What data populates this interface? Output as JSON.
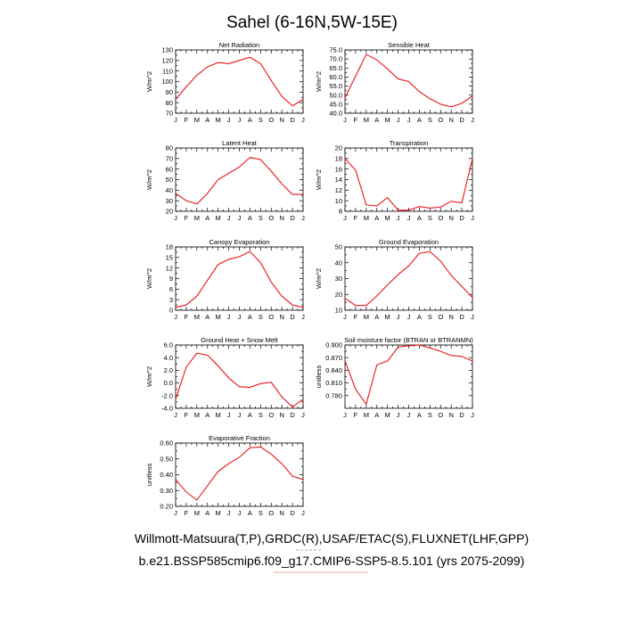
{
  "figure": {
    "title": "Sahel (6-16N,5W-15E)",
    "footer_line1": "Willmott-Matsuura(T,P),GRDC(R),USAF/ETAC(S),FLUXNET(LHF,GPP)",
    "footer_line2": "b.e21.BSSP585cmip6.f09_g17.CMIP6-SSP5-8.5.101 (yrs 2075-2099)",
    "line_color": "#e8141a"
  },
  "chart_data": [
    {
      "type": "line",
      "title": "Net Radiation",
      "ylabel": "W/m^2",
      "categories": [
        "J",
        "F",
        "M",
        "A",
        "M",
        "J",
        "J",
        "A",
        "S",
        "O",
        "N",
        "D",
        "J"
      ],
      "ylim": [
        70,
        130
      ],
      "yticks": [
        70,
        80,
        90,
        100,
        110,
        120,
        130
      ],
      "ytick_labels": [
        "70",
        "80",
        "90",
        "100",
        "110",
        "120",
        "130"
      ],
      "values": [
        83,
        95,
        106,
        114,
        118,
        117,
        120,
        123,
        117,
        101,
        86,
        77,
        83
      ]
    },
    {
      "type": "line",
      "title": "Sensible Heat",
      "ylabel": "W/m^2",
      "categories": [
        "J",
        "F",
        "M",
        "A",
        "M",
        "J",
        "J",
        "A",
        "S",
        "O",
        "N",
        "D",
        "J"
      ],
      "ylim": [
        40,
        75
      ],
      "yticks": [
        40,
        45,
        50,
        55,
        60,
        65,
        70,
        75
      ],
      "ytick_labels": [
        "40.0",
        "45.0",
        "50.0",
        "55.0",
        "60.0",
        "65.0",
        "70.0",
        "75.0"
      ],
      "values": [
        48.5,
        60.5,
        72.5,
        69.5,
        64.5,
        59,
        57.5,
        52,
        48,
        45,
        43.5,
        45.5,
        49.5
      ]
    },
    {
      "type": "line",
      "title": "Latent Heat",
      "ylabel": "W/m^2",
      "categories": [
        "J",
        "F",
        "M",
        "A",
        "M",
        "J",
        "J",
        "A",
        "S",
        "O",
        "N",
        "D",
        "J"
      ],
      "ylim": [
        20,
        80
      ],
      "yticks": [
        20,
        30,
        40,
        50,
        60,
        70,
        80
      ],
      "ytick_labels": [
        "20",
        "30",
        "40",
        "50",
        "60",
        "70",
        "80"
      ],
      "values": [
        37,
        30,
        27,
        37,
        50,
        56,
        62,
        71,
        69,
        58,
        46,
        36,
        36
      ]
    },
    {
      "type": "line",
      "title": "Transpiration",
      "ylabel": "W/m^2",
      "categories": [
        "J",
        "F",
        "M",
        "A",
        "M",
        "J",
        "J",
        "A",
        "S",
        "O",
        "N",
        "D",
        "J"
      ],
      "ylim": [
        8,
        20
      ],
      "yticks": [
        8,
        10,
        12,
        14,
        16,
        18,
        20
      ],
      "ytick_labels": [
        "8",
        "10",
        "12",
        "14",
        "16",
        "18",
        "20"
      ],
      "values": [
        18,
        15.8,
        9.2,
        9,
        10.6,
        8.2,
        8.2,
        8.9,
        8.6,
        8.8,
        9.9,
        9.6,
        18
      ]
    },
    {
      "type": "line",
      "title": "Canopy Evaporation",
      "ylabel": "W/m^2",
      "categories": [
        "J",
        "F",
        "M",
        "A",
        "M",
        "J",
        "J",
        "A",
        "S",
        "O",
        "N",
        "D",
        "J"
      ],
      "ylim": [
        0,
        18
      ],
      "yticks": [
        0,
        3,
        6,
        9,
        12,
        15,
        18
      ],
      "ytick_labels": [
        "0",
        "3",
        "6",
        "9",
        "12",
        "15",
        "18"
      ],
      "values": [
        0.8,
        1.5,
        4,
        8.5,
        13,
        14.5,
        15.2,
        16.7,
        13.5,
        8,
        4,
        1.5,
        0.8
      ]
    },
    {
      "type": "line",
      "title": "Ground Evaporation",
      "ylabel": "W/m^2",
      "categories": [
        "J",
        "F",
        "M",
        "A",
        "M",
        "J",
        "J",
        "A",
        "S",
        "O",
        "N",
        "D",
        "J"
      ],
      "ylim": [
        10,
        50
      ],
      "yticks": [
        10,
        20,
        30,
        40,
        50
      ],
      "ytick_labels": [
        "10",
        "20",
        "30",
        "40",
        "50"
      ],
      "values": [
        17.5,
        13,
        13,
        19,
        26,
        32.5,
        38,
        46,
        47,
        41,
        32,
        25,
        18
      ]
    },
    {
      "type": "line",
      "title": "Ground Heat + Snow Melt",
      "ylabel": "W/m^2",
      "categories": [
        "J",
        "F",
        "M",
        "A",
        "M",
        "J",
        "J",
        "A",
        "S",
        "O",
        "N",
        "D",
        "J"
      ],
      "ylim": [
        -4,
        6
      ],
      "yticks": [
        -4,
        -2,
        0,
        2,
        4,
        6
      ],
      "ytick_labels": [
        "-4.0",
        "-2.0",
        "0.0",
        "2.0",
        "4.0",
        "6.0"
      ],
      "values": [
        -2.6,
        2.5,
        4.7,
        4.4,
        2.7,
        0.8,
        -0.6,
        -0.7,
        -0.1,
        0.1,
        -2.2,
        -3.8,
        -2.6
      ]
    },
    {
      "type": "line",
      "title": "Soil moisture factor (BTRAN or BTRANMN)",
      "ylabel": "unitless",
      "categories": [
        "J",
        "F",
        "M",
        "A",
        "M",
        "J",
        "J",
        "A",
        "S",
        "O",
        "N",
        "D",
        "J"
      ],
      "ylim": [
        0.75,
        0.9
      ],
      "yticks": [
        0.78,
        0.81,
        0.84,
        0.87,
        0.9
      ],
      "ytick_labels": [
        "0.780",
        "0.810",
        "0.840",
        "0.870",
        "0.900"
      ],
      "values": [
        0.862,
        0.795,
        0.76,
        0.853,
        0.862,
        0.895,
        0.898,
        0.9,
        0.893,
        0.885,
        0.875,
        0.873,
        0.862
      ]
    },
    {
      "type": "line",
      "title": "Evaporative Fraction",
      "ylabel": "unitless",
      "categories": [
        "J",
        "F",
        "M",
        "A",
        "M",
        "J",
        "J",
        "A",
        "S",
        "O",
        "N",
        "D",
        "J"
      ],
      "ylim": [
        0.2,
        0.6
      ],
      "yticks": [
        0.2,
        0.3,
        0.4,
        0.5,
        0.6
      ],
      "ytick_labels": [
        "0.20",
        "0.30",
        "0.40",
        "0.50",
        "0.60"
      ],
      "values": [
        0.37,
        0.29,
        0.24,
        0.33,
        0.42,
        0.47,
        0.51,
        0.57,
        0.575,
        0.53,
        0.47,
        0.39,
        0.37
      ]
    }
  ]
}
